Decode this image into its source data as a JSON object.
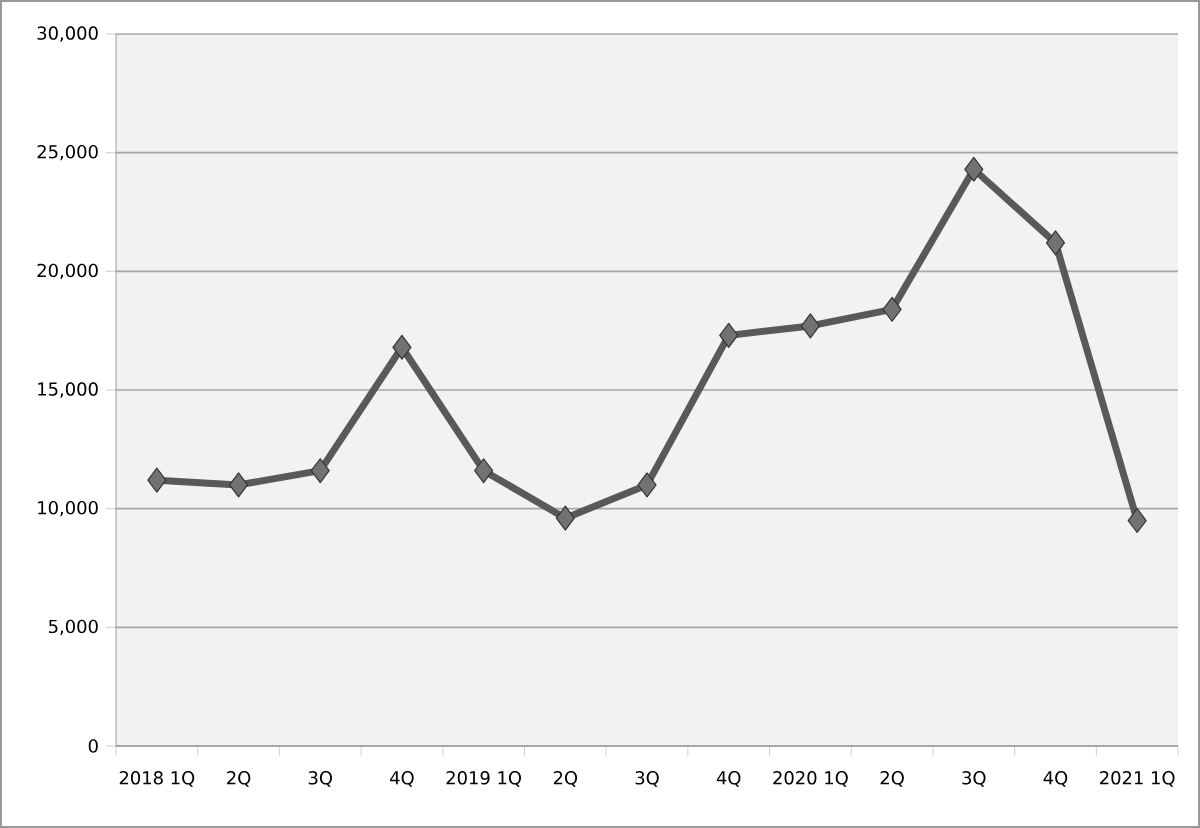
{
  "chart_data": {
    "type": "line",
    "categories": [
      "2018 1Q",
      "2Q",
      "3Q",
      "4Q",
      "2019 1Q",
      "2Q",
      "3Q",
      "4Q",
      "2020 1Q",
      "2Q",
      "3Q",
      "4Q",
      "2021 1Q"
    ],
    "series": [
      {
        "color": "#595959",
        "values": [
          11200,
          11000,
          11600,
          16800,
          11600,
          9600,
          11000,
          17300,
          17700,
          18400,
          24300,
          21200,
          9500
        ]
      }
    ],
    "ylim": [
      0,
      30000
    ],
    "yticks": [
      {
        "value": 0,
        "label": "0"
      },
      {
        "value": 5000,
        "label": "5,000"
      },
      {
        "value": 10000,
        "label": "10,000"
      },
      {
        "value": 15000,
        "label": "15,000"
      },
      {
        "value": 20000,
        "label": "20,000"
      },
      {
        "value": 25000,
        "label": "25,000"
      },
      {
        "value": 30000,
        "label": "30,000"
      }
    ],
    "grid": "y",
    "marker": "diamond",
    "line_style": "solid"
  }
}
